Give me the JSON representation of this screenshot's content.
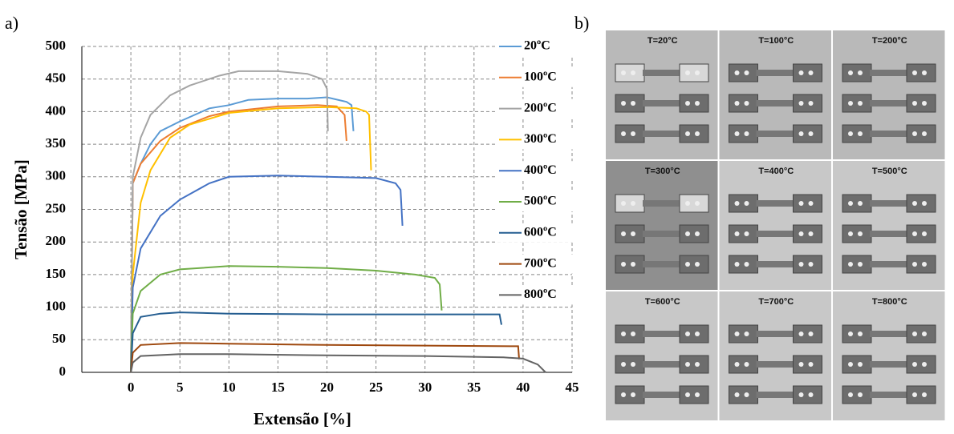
{
  "chart_data": {
    "type": "line",
    "x_label": "Extensão [%]",
    "y_label": "Tensão [MPa]",
    "xlim": [
      -5,
      45
    ],
    "xticks": [
      0,
      5,
      10,
      15,
      20,
      25,
      30,
      35,
      40,
      45
    ],
    "ylim": [
      0,
      500
    ],
    "yticks": [
      0,
      50,
      100,
      150,
      200,
      250,
      300,
      350,
      400,
      450,
      500
    ],
    "grid": true,
    "legend": "right",
    "series": [
      {
        "name": "20ºC",
        "color": "#5b9bd5",
        "x": [
          0,
          0.2,
          1,
          2,
          3,
          5,
          8,
          10,
          12,
          15,
          18,
          20,
          22,
          22.5,
          22.7
        ],
        "values": [
          0,
          290,
          320,
          350,
          370,
          385,
          405,
          410,
          418,
          420,
          420,
          422,
          415,
          410,
          370
        ]
      },
      {
        "name": "100ºC",
        "color": "#ed7d31",
        "x": [
          0,
          0.2,
          1,
          3,
          5,
          8,
          10,
          15,
          19,
          21,
          21.8,
          22
        ],
        "values": [
          0,
          290,
          320,
          355,
          375,
          393,
          400,
          408,
          410,
          408,
          395,
          355
        ]
      },
      {
        "name": "200ºC",
        "color": "#a5a5a5",
        "x": [
          0,
          0.2,
          1,
          2,
          4,
          6,
          9,
          11,
          15,
          18,
          19.5,
          20,
          20.1
        ],
        "values": [
          0,
          300,
          360,
          395,
          425,
          440,
          455,
          462,
          462,
          458,
          450,
          435,
          370
        ]
      },
      {
        "name": "300ºC",
        "color": "#ffc000",
        "x": [
          0,
          0.2,
          1,
          2,
          4,
          6,
          10,
          15,
          20,
          23,
          24,
          24.3,
          24.5
        ],
        "values": [
          0,
          150,
          260,
          310,
          360,
          380,
          398,
          405,
          407,
          405,
          400,
          395,
          310
        ]
      },
      {
        "name": "400ºC",
        "color": "#4472c4",
        "x": [
          0,
          0.2,
          1,
          3,
          5,
          8,
          10,
          15,
          20,
          25,
          27,
          27.5,
          27.7
        ],
        "values": [
          0,
          130,
          190,
          240,
          265,
          290,
          300,
          302,
          300,
          298,
          290,
          280,
          225
        ]
      },
      {
        "name": "500ºC",
        "color": "#70ad47",
        "x": [
          0,
          0.2,
          1,
          3,
          5,
          10,
          15,
          20,
          25,
          29,
          31,
          31.5,
          31.7
        ],
        "values": [
          0,
          90,
          125,
          150,
          158,
          163,
          162,
          160,
          156,
          150,
          145,
          135,
          95
        ]
      },
      {
        "name": "600ºC",
        "color": "#255e91",
        "x": [
          0,
          0.2,
          1,
          3,
          5,
          10,
          20,
          30,
          37.6,
          37.8
        ],
        "values": [
          0,
          60,
          85,
          90,
          92,
          90,
          89,
          89,
          89,
          73
        ]
      },
      {
        "name": "700ºC",
        "color": "#9e480e",
        "x": [
          0,
          0.2,
          1,
          5,
          10,
          20,
          30,
          39.5,
          39.6
        ],
        "values": [
          0,
          30,
          42,
          45,
          44,
          42,
          41,
          40,
          20
        ]
      },
      {
        "name": "800ºC",
        "color": "#636363",
        "x": [
          0,
          0.2,
          1,
          5,
          10,
          20,
          30,
          38,
          40,
          41.5,
          42.3
        ],
        "values": [
          0,
          15,
          25,
          28,
          28,
          26,
          25,
          23,
          21,
          12,
          0
        ]
      }
    ]
  },
  "panel_labels": [
    "a)",
    "b)"
  ],
  "photo_panel": {
    "labels": [
      "T=20°C",
      "T=100°C",
      "T=200°C",
      "T=300°C",
      "T=400°C",
      "T=500°C",
      "T=600°C",
      "T=700°C",
      "T=800°C"
    ]
  }
}
